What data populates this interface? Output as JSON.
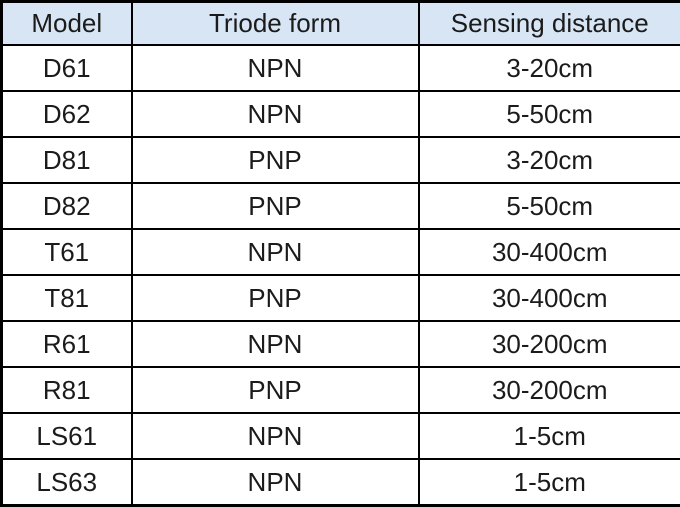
{
  "chart_data": {
    "type": "table",
    "title": "",
    "columns": [
      "Model",
      "Triode form",
      "Sensing distance"
    ],
    "rows": [
      [
        "D61",
        "NPN",
        "3-20cm"
      ],
      [
        "D62",
        "NPN",
        "5-50cm"
      ],
      [
        "D81",
        "PNP",
        "3-20cm"
      ],
      [
        "D82",
        "PNP",
        "5-50cm"
      ],
      [
        "T61",
        "NPN",
        "30-400cm"
      ],
      [
        "T81",
        "PNP",
        "30-400cm"
      ],
      [
        "R61",
        "NPN",
        "30-200cm"
      ],
      [
        "R81",
        "PNP",
        "30-200cm"
      ],
      [
        "LS61",
        "NPN",
        "1-5cm"
      ],
      [
        "LS63",
        "NPN",
        "1-5cm"
      ]
    ]
  },
  "table": {
    "columns": [
      "Model",
      "Triode form",
      "Sensing distance"
    ],
    "rows": [
      [
        "D61",
        "NPN",
        "3-20cm"
      ],
      [
        "D62",
        "NPN",
        "5-50cm"
      ],
      [
        "D81",
        "PNP",
        "3-20cm"
      ],
      [
        "D82",
        "PNP",
        "5-50cm"
      ],
      [
        "T61",
        "NPN",
        "30-400cm"
      ],
      [
        "T81",
        "PNP",
        "30-400cm"
      ],
      [
        "R61",
        "NPN",
        "30-200cm"
      ],
      [
        "R81",
        "PNP",
        "30-200cm"
      ],
      [
        "LS61",
        "NPN",
        "1-5cm"
      ],
      [
        "LS63",
        "NPN",
        "1-5cm"
      ]
    ],
    "colors": {
      "header_bg": "#d8e5f4",
      "border": "#000000",
      "row_bg": "#ffffff",
      "text": "#1b1b1b"
    }
  }
}
